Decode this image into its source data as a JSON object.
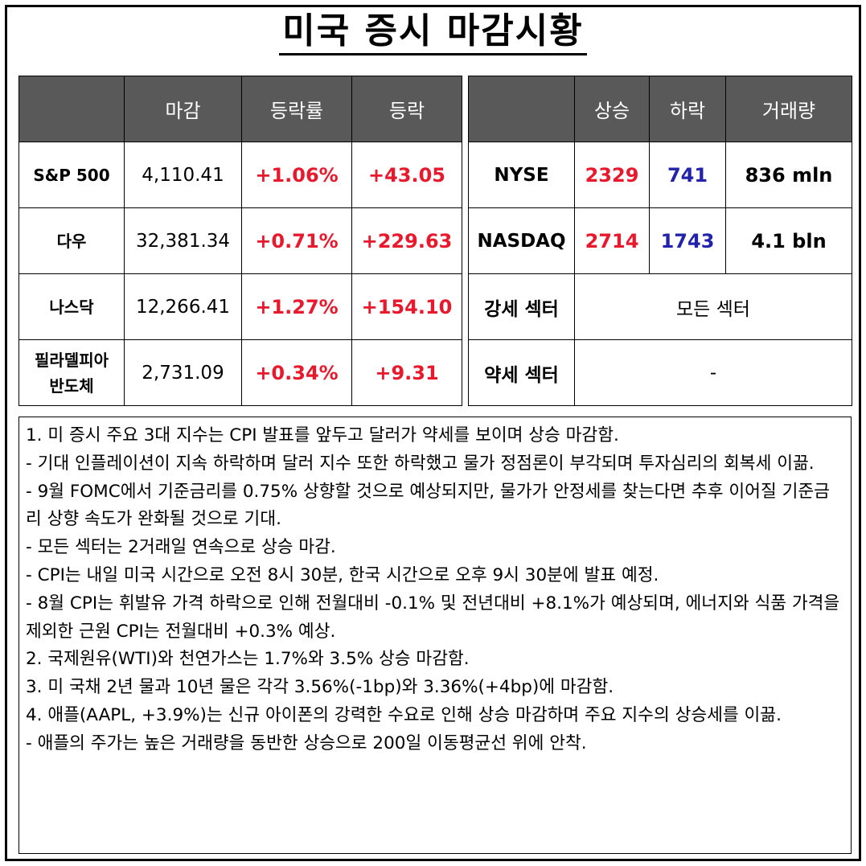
{
  "title": "미국 증시 마감시황",
  "index_table": {
    "headers": [
      "",
      "마감",
      "등락률",
      "등락"
    ],
    "rows": [
      {
        "name": "S&P 500",
        "close": "4,110.41",
        "pct": "+1.06%",
        "change": "+43.05"
      },
      {
        "name": "다우",
        "close": "32,381.34",
        "pct": "+0.71%",
        "change": "+229.63"
      },
      {
        "name": "나스닥",
        "close": "12,266.41",
        "pct": "+1.27%",
        "change": "+154.10"
      },
      {
        "name_line1": "필라델피아",
        "name_line2": "반도체",
        "close": "2,731.09",
        "pct": "+0.34%",
        "change": "+9.31"
      }
    ]
  },
  "market_table": {
    "headers": [
      "",
      "상승",
      "하락",
      "거래량"
    ],
    "rows": [
      {
        "name": "NYSE",
        "up": "2329",
        "down": "741",
        "volume": "836 mln"
      },
      {
        "name": "NASDAQ",
        "up": "2714",
        "down": "1743",
        "volume": "4.1 bln"
      }
    ],
    "strong_label": "강세 섹터",
    "strong_value": "모든 섹터",
    "weak_label": "약세 섹터",
    "weak_value": "-"
  },
  "notes": [
    "1. 미 증시 주요 3대 지수는 CPI 발표를 앞두고 달러가 약세를 보이며 상승 마감함.",
    "- 기대 인플레이션이 지속 하락하며 달러 지수 또한 하락했고 물가 정점론이 부각되며 투자심리의 회복세 이끎.",
    "- 9월 FOMC에서 기준금리를 0.75% 상향할 것으로 예상되지만, 물가가 안정세를 찾는다면 추후 이어질 기준금리 상향 속도가 완화될 것으로 기대.",
    "- 모든 섹터는 2거래일 연속으로 상승 마감.",
    "- CPI는 내일 미국 시간으로 오전 8시 30분, 한국 시간으로 오후 9시 30분에 발표 예정.",
    "- 8월 CPI는 휘발유 가격 하락으로 인해 전월대비 -0.1% 및 전년대비 +8.1%가 예상되며, 에너지와 식품 가격을 제외한 근원 CPI는 전월대비 +0.3% 예상.",
    "2. 국제원유(WTI)와 천연가스는 1.7%와 3.5% 상승 마감함.",
    "3. 미 국채 2년 물과 10년 물은 각각 3.56%(-1bp)와 3.36%(+4bp)에 마감함.",
    "4. 애플(AAPL, +3.9%)는 신규 아이폰의 강력한 수요로 인해 상승 마감하며 주요 지수의 상승세를 이끎.",
    "- 애플의 주가는 높은 거래량을 동반한 상승으로 200일 이동평균선 위에 안착."
  ],
  "colors": {
    "up": "#e8192c",
    "down": "#2222aa",
    "header_bg": "#595959"
  }
}
